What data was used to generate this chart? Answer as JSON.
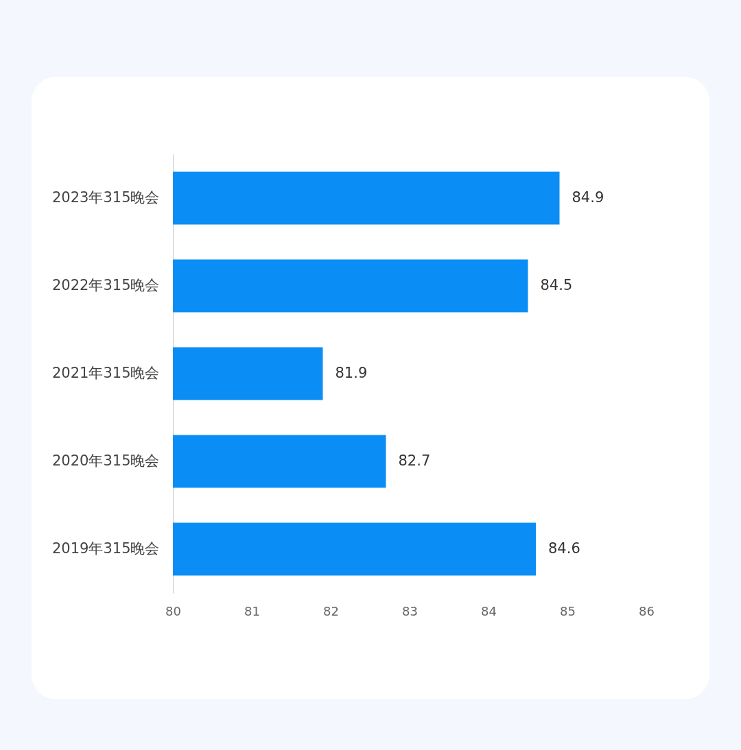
{
  "chart_data": {
    "type": "bar",
    "orientation": "horizontal",
    "categories": [
      "2023年315晚会",
      "2022年315晚会",
      "2021年315晚会",
      "2020年315晚会",
      "2019年315晚会"
    ],
    "values": [
      84.9,
      84.5,
      81.9,
      82.7,
      84.6
    ],
    "color": "#0a8ef5",
    "xlim": [
      80,
      86
    ],
    "xticks": [
      80,
      81,
      82,
      83,
      84,
      85,
      86
    ],
    "data_labels": true
  }
}
